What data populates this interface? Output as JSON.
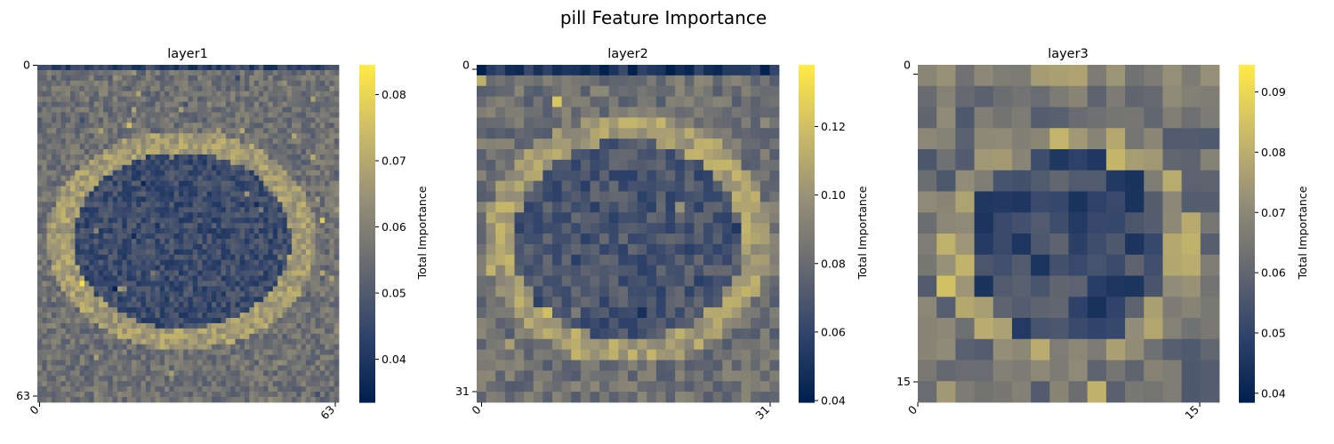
{
  "figure": {
    "suptitle": "pill Feature Importance",
    "colormap": "cividis",
    "colormap_stops": [
      "#00204D",
      "#31446B",
      "#666970",
      "#958F78",
      "#CBBA69",
      "#FFEA46"
    ]
  },
  "chart_data": [
    {
      "type": "heatmap",
      "title": "layer1",
      "grid_size": 64,
      "x_tick_labels": [
        "0",
        "63"
      ],
      "y_tick_labels": [
        "0",
        "63"
      ],
      "colorbar_label": "Total Importance",
      "value_range": [
        0.0335,
        0.0845
      ],
      "colorbar_ticks": [
        "0.04",
        "0.05",
        "0.06",
        "0.07",
        "0.08"
      ],
      "structure": {
        "background_mean": 0.056,
        "ellipse_center": [
          0.48,
          0.52
        ],
        "ellipse_radii": [
          0.4,
          0.29
        ],
        "interior_mean": 0.046,
        "ring_mean": 0.067,
        "noise": 0.006,
        "top_row_mean": 0.043
      }
    },
    {
      "type": "heatmap",
      "title": "layer2",
      "grid_size": 32,
      "x_tick_labels": [
        "0",
        "31"
      ],
      "y_tick_labels": [
        "0",
        "31"
      ],
      "colorbar_label": "Total Importance",
      "value_range": [
        0.0395,
        0.138
      ],
      "colorbar_ticks": [
        "0.04",
        "0.06",
        "0.08",
        "0.10",
        "0.12"
      ],
      "structure": {
        "background_mean": 0.083,
        "ellipse_center": [
          0.5,
          0.52
        ],
        "ellipse_radii": [
          0.42,
          0.33
        ],
        "interior_mean": 0.068,
        "ring_mean": 0.105,
        "noise": 0.012,
        "top_row_mean": 0.05
      }
    },
    {
      "type": "heatmap",
      "title": "layer3",
      "grid_size": 16,
      "x_tick_labels": [
        "0",
        "15"
      ],
      "y_tick_labels": [
        "0",
        "15"
      ],
      "colorbar_label": "Total Importance",
      "value_range": [
        0.0385,
        0.0945
      ],
      "colorbar_ticks": [
        "0.04",
        "0.05",
        "0.06",
        "0.07",
        "0.08",
        "0.09"
      ],
      "structure": {
        "background_mean": 0.063,
        "ellipse_center": [
          0.5,
          0.55
        ],
        "ellipse_radii": [
          0.38,
          0.32
        ],
        "interior_mean": 0.052,
        "ring_mean": 0.074,
        "noise": 0.008,
        "top_row_mean": 0.07
      }
    }
  ]
}
